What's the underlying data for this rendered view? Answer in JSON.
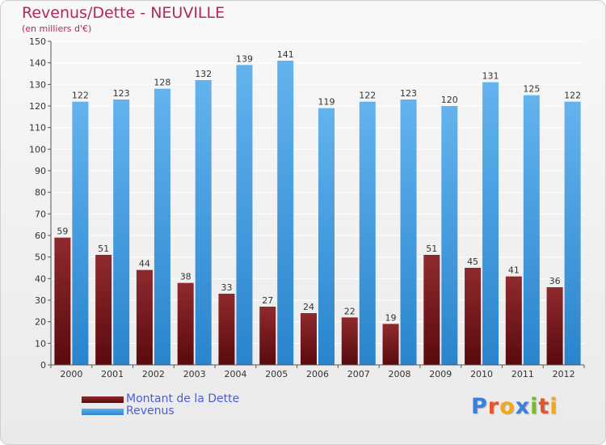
{
  "title": "Revenus/Dette - NEUVILLE",
  "subtitle": "(en milliers d'€)",
  "logo": {
    "text": "Proxiti",
    "colors": [
      "#3a7fd9",
      "#e8542a",
      "#f2a81d",
      "#3a7fd9",
      "#7cb82f",
      "#e8542a",
      "#f2a81d"
    ]
  },
  "colors": {
    "dette_top": "#8e2a2e",
    "dette_bottom": "#5a0a0e",
    "revenus_top": "#63b3ee",
    "revenus_bottom": "#2a84cc",
    "axis": "#555555",
    "grid": "#ffffff"
  },
  "chart_data": {
    "type": "bar",
    "categories": [
      "2000",
      "2001",
      "2002",
      "2003",
      "2004",
      "2005",
      "2006",
      "2007",
      "2008",
      "2009",
      "2010",
      "2011",
      "2012"
    ],
    "series": [
      {
        "name": "Montant de la Dette",
        "values": [
          59,
          51,
          44,
          38,
          33,
          27,
          24,
          22,
          19,
          51,
          45,
          41,
          36
        ]
      },
      {
        "name": "Revenus",
        "values": [
          122,
          123,
          128,
          132,
          139,
          141,
          119,
          122,
          123,
          120,
          131,
          125,
          122
        ]
      }
    ],
    "ylim": [
      0,
      150
    ],
    "yticks": [
      0,
      10,
      20,
      30,
      40,
      50,
      60,
      70,
      80,
      90,
      100,
      110,
      120,
      130,
      140,
      150
    ],
    "xlabel": "",
    "ylabel": "",
    "grid": true,
    "legend_position": "bottom-left"
  }
}
